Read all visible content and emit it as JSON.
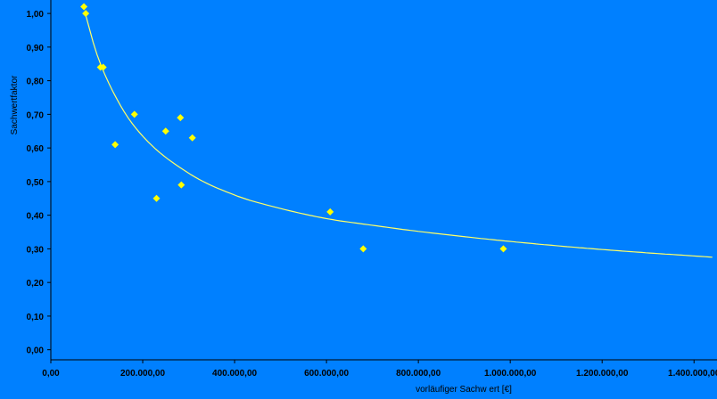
{
  "colors": {
    "background": "#0080ff",
    "axis": "#000000",
    "points": "#ffff00",
    "trend": "#ffff66"
  },
  "chart_data": {
    "type": "scatter",
    "title": "",
    "xlabel": "vorläufiger Sachw ert [€]",
    "ylabel": "Sachwertfaktor",
    "xlim": [
      0,
      1450000
    ],
    "ylim": [
      -0.03,
      1.04
    ],
    "x_ticks": [
      0,
      200000,
      400000,
      600000,
      800000,
      1000000,
      1200000,
      1400000
    ],
    "x_tick_labels": [
      "0,00",
      "200.000,00",
      "400.000,00",
      "600.000,00",
      "800.000,00",
      "1.000.000,00",
      "1.200.000,00",
      "1.400.000,00"
    ],
    "y_ticks": [
      0,
      0.1,
      0.2,
      0.3,
      0.4,
      0.5,
      0.6,
      0.7,
      0.8,
      0.9,
      1.0
    ],
    "y_tick_labels": [
      "0,00",
      "0,10",
      "0,20",
      "0,30",
      "0,40",
      "0,50",
      "0,60",
      "0,70",
      "0,80",
      "0,90",
      "1,00"
    ],
    "grid": false,
    "series": [
      {
        "points": [
          {
            "x": 72000,
            "y": 1.02
          },
          {
            "x": 76000,
            "y": 1.0
          },
          {
            "x": 108000,
            "y": 0.84
          },
          {
            "x": 114000,
            "y": 0.84
          },
          {
            "x": 140000,
            "y": 0.61
          },
          {
            "x": 182000,
            "y": 0.7
          },
          {
            "x": 230000,
            "y": 0.45
          },
          {
            "x": 250000,
            "y": 0.65
          },
          {
            "x": 282000,
            "y": 0.69
          },
          {
            "x": 284000,
            "y": 0.49
          },
          {
            "x": 308000,
            "y": 0.63
          },
          {
            "x": 608000,
            "y": 0.41
          },
          {
            "x": 680000,
            "y": 0.3
          },
          {
            "x": 985000,
            "y": 0.3
          }
        ]
      }
    ],
    "trendline": {
      "type": "power",
      "x_range": [
        75000,
        1440000
      ],
      "points": [
        {
          "x": 75000,
          "y": 1.0
        },
        {
          "x": 100000,
          "y": 0.88
        },
        {
          "x": 150000,
          "y": 0.73
        },
        {
          "x": 200000,
          "y": 0.635
        },
        {
          "x": 300000,
          "y": 0.525
        },
        {
          "x": 400000,
          "y": 0.46
        },
        {
          "x": 500000,
          "y": 0.42
        },
        {
          "x": 600000,
          "y": 0.39
        },
        {
          "x": 700000,
          "y": 0.37
        },
        {
          "x": 800000,
          "y": 0.352
        },
        {
          "x": 1000000,
          "y": 0.322
        },
        {
          "x": 1200000,
          "y": 0.298
        },
        {
          "x": 1440000,
          "y": 0.275
        }
      ]
    }
  }
}
